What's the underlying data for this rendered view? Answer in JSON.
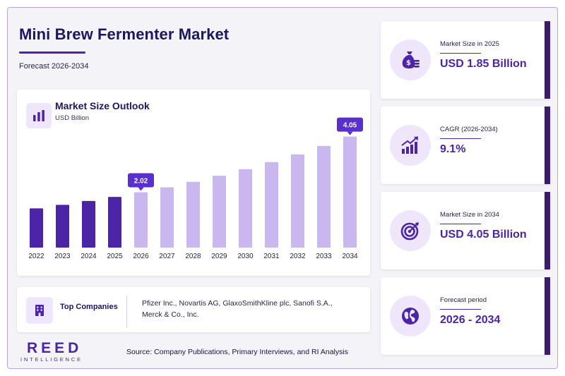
{
  "header": {
    "title": "Mini Brew Fermenter Market",
    "subtitle": "Forecast 2026-2034"
  },
  "chart_card": {
    "title": "Market Size Outlook",
    "unit": "USD Billion",
    "icon": "bar-chart-icon"
  },
  "chart_data": {
    "type": "bar",
    "categories": [
      "2022",
      "2023",
      "2024",
      "2025",
      "2026",
      "2027",
      "2028",
      "2029",
      "2030",
      "2031",
      "2032",
      "2033",
      "2034"
    ],
    "values": [
      1.43,
      1.56,
      1.7,
      1.85,
      2.02,
      2.2,
      2.4,
      2.62,
      2.86,
      3.12,
      3.4,
      3.71,
      4.05
    ],
    "labeled_points": [
      {
        "category": "2026",
        "label": "2.02"
      },
      {
        "category": "2034",
        "label": "4.05"
      }
    ],
    "title": "Market Size Outlook",
    "ylabel": "USD Billion",
    "xlabel": "",
    "ylim": [
      0,
      4.4
    ],
    "historical_color": "#4b24a8",
    "forecast_color": "#c9b7f0",
    "label_color": "#5a2fd0",
    "grid": false
  },
  "companies": {
    "label": "Top Companies",
    "icon": "building-icon",
    "text": "Pfizer Inc., Novartis AG, GlaxoSmithKline plc, Sanofi S.A., Merck & Co., Inc."
  },
  "stats": [
    {
      "label": "Market Size in 2025",
      "value": "USD 1.85 Billion",
      "icon": "money-bag-icon"
    },
    {
      "label": "CAGR (2026-2034)",
      "value": "9.1%",
      "icon": "growth-chart-icon"
    },
    {
      "label": "Market Size in 2034",
      "value": "USD 4.05 Billion",
      "icon": "target-icon"
    },
    {
      "label": "Forecast period",
      "value": "2026 - 2034",
      "icon": "globe-icon"
    }
  ],
  "footer": {
    "brand": "REED",
    "brand_sub": "INTELLIGENCE",
    "source": "Source: Company Publications, Primary Interviews, and RI Analysis"
  },
  "colors": {
    "primary": "#4b24a8",
    "dark": "#1d1660",
    "accent_bar": "#3a1a73",
    "icon_bg": "#efe6fb"
  }
}
